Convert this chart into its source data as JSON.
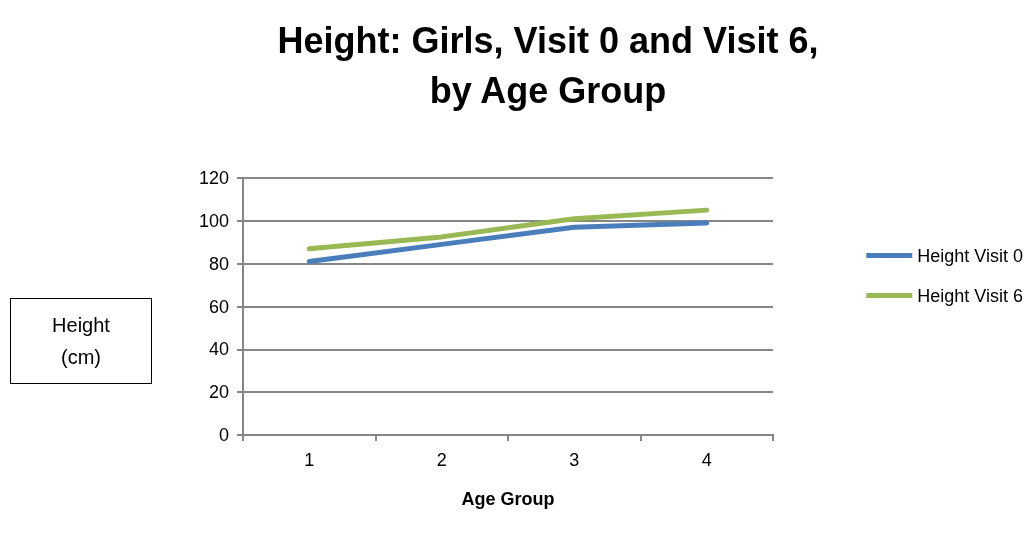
{
  "chart_data": {
    "type": "line",
    "title": "Height: Girls, Visit 0 and Visit 6,\nby Age Group",
    "xlabel": "Age Group",
    "ylabel": "Height\n(cm)",
    "categories": [
      "1",
      "2",
      "3",
      "4"
    ],
    "series": [
      {
        "name": "Height Visit 0",
        "color": "#4a7ebb",
        "values": [
          81,
          89,
          97,
          99
        ]
      },
      {
        "name": "Height Visit 6",
        "color": "#98b954",
        "values": [
          87,
          92.5,
          101,
          105
        ]
      }
    ],
    "ylim": [
      0,
      120
    ],
    "yticks": [
      0,
      20,
      40,
      60,
      80,
      100,
      120
    ],
    "grid": "y",
    "legend": "right",
    "marker": "none",
    "line_style": "solid"
  }
}
